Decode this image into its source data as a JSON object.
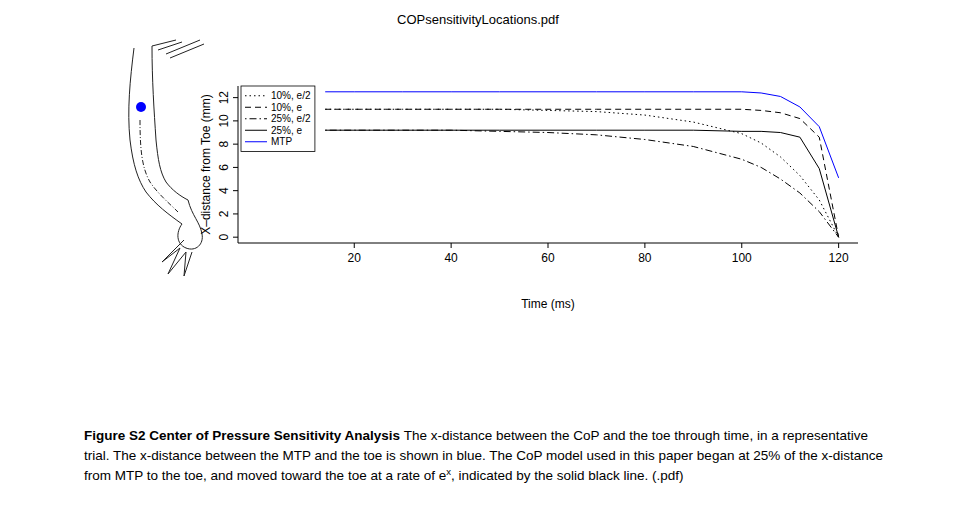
{
  "chart_data": {
    "type": "line",
    "title": "COPsensitivityLocations.pdf",
    "xlabel": "Time (ms)",
    "ylabel": "X–distance from Toe (mm)",
    "x": [
      14,
      20,
      30,
      40,
      50,
      60,
      70,
      80,
      90,
      100,
      104,
      108,
      112,
      116,
      120
    ],
    "series": [
      {
        "name": "10%, e/2",
        "color": "#000000",
        "line_style": "dotted",
        "values": [
          11,
          11,
          11,
          11,
          11,
          10.9,
          10.8,
          10.5,
          9.9,
          8.9,
          8.1,
          6.9,
          5.3,
          3.2,
          0
        ]
      },
      {
        "name": "10%, e",
        "color": "#000000",
        "line_style": "dashed",
        "values": [
          11,
          11,
          11,
          11,
          11,
          11,
          11,
          11,
          11,
          11,
          10.9,
          10.7,
          10.2,
          8.6,
          0
        ]
      },
      {
        "name": "25%, e/2",
        "color": "#000000",
        "line_style": "dashdot",
        "values": [
          9.2,
          9.2,
          9.2,
          9.2,
          9.1,
          9.0,
          8.8,
          8.4,
          7.8,
          6.7,
          6.0,
          5.0,
          3.8,
          2.2,
          0
        ]
      },
      {
        "name": "25%, e",
        "color": "#000000",
        "line_style": "solid",
        "values": [
          9.2,
          9.2,
          9.2,
          9.2,
          9.2,
          9.2,
          9.2,
          9.2,
          9.2,
          9.1,
          9.1,
          9.0,
          8.6,
          5.9,
          0
        ]
      },
      {
        "name": "MTP",
        "color": "#0000ff",
        "line_style": "solid",
        "values": [
          12.5,
          12.5,
          12.5,
          12.5,
          12.5,
          12.5,
          12.5,
          12.5,
          12.5,
          12.5,
          12.4,
          12.1,
          11.2,
          9.5,
          5.1
        ]
      }
    ],
    "xlim": [
      -4,
      124
    ],
    "ylim": [
      -0.5,
      13
    ],
    "xticks": [
      20,
      40,
      60,
      80,
      100,
      120
    ],
    "yticks": [
      0,
      2,
      4,
      6,
      8,
      10,
      12
    ],
    "grid": false,
    "legend": "topleft"
  },
  "caption": {
    "label": "Figure S2",
    "title": "Center of Pressure Sensitivity Analysis",
    "text": "The x-distance between the CoP and the toe through time, in a representative trial. The x-distance between the MTP and the toe is shown in blue. The CoP model used in this paper began at 25% of the x-distance from MTP to the toe, and moved toward the toe at a rate of ",
    "math": {
      "base": "e",
      "sup": "x"
    },
    "text_end": ", indicated by the solid black line. (.pdf)"
  }
}
